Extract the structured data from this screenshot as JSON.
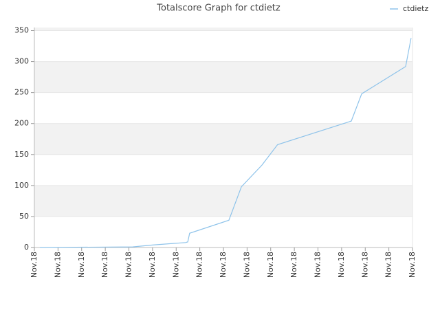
{
  "chart_data": {
    "type": "line",
    "title": "Totalscore Graph for ctdietz",
    "x": [
      0.23,
      4.16,
      5.0,
      6.4,
      6.49,
      6.57,
      8.23,
      8.76,
      9.63,
      10.29,
      13.41,
      13.85,
      15.71,
      15.94
    ],
    "series": [
      {
        "name": "ctdietz",
        "color": "#8ec3ea",
        "values": [
          0,
          1,
          4,
          8,
          9,
          23,
          44,
          98,
          133,
          166,
          204,
          248,
          292,
          338
        ]
      }
    ],
    "xlim": [
      0,
      16
    ],
    "xticks": [
      {
        "value": 0,
        "label": "Nov.18"
      },
      {
        "value": 1,
        "label": "Nov.18"
      },
      {
        "value": 2,
        "label": "Nov.18"
      },
      {
        "value": 3,
        "label": "Nov.18"
      },
      {
        "value": 4,
        "label": "Nov.18"
      },
      {
        "value": 5,
        "label": "Nov.18"
      },
      {
        "value": 6,
        "label": "Nov.18"
      },
      {
        "value": 7,
        "label": "Nov.18"
      },
      {
        "value": 8,
        "label": "Nov.18"
      },
      {
        "value": 9,
        "label": "Nov.18"
      },
      {
        "value": 10,
        "label": "Nov.18"
      },
      {
        "value": 11,
        "label": "Nov.18"
      },
      {
        "value": 12,
        "label": "Nov.18"
      },
      {
        "value": 13,
        "label": "Nov.18"
      },
      {
        "value": 14,
        "label": "Nov.18"
      },
      {
        "value": 15,
        "label": "Nov.18"
      },
      {
        "value": 16,
        "label": "Nov.18"
      }
    ],
    "ylim": [
      0,
      355
    ],
    "yticks": [
      0,
      50,
      100,
      150,
      200,
      250,
      300,
      350
    ],
    "grid": true
  }
}
